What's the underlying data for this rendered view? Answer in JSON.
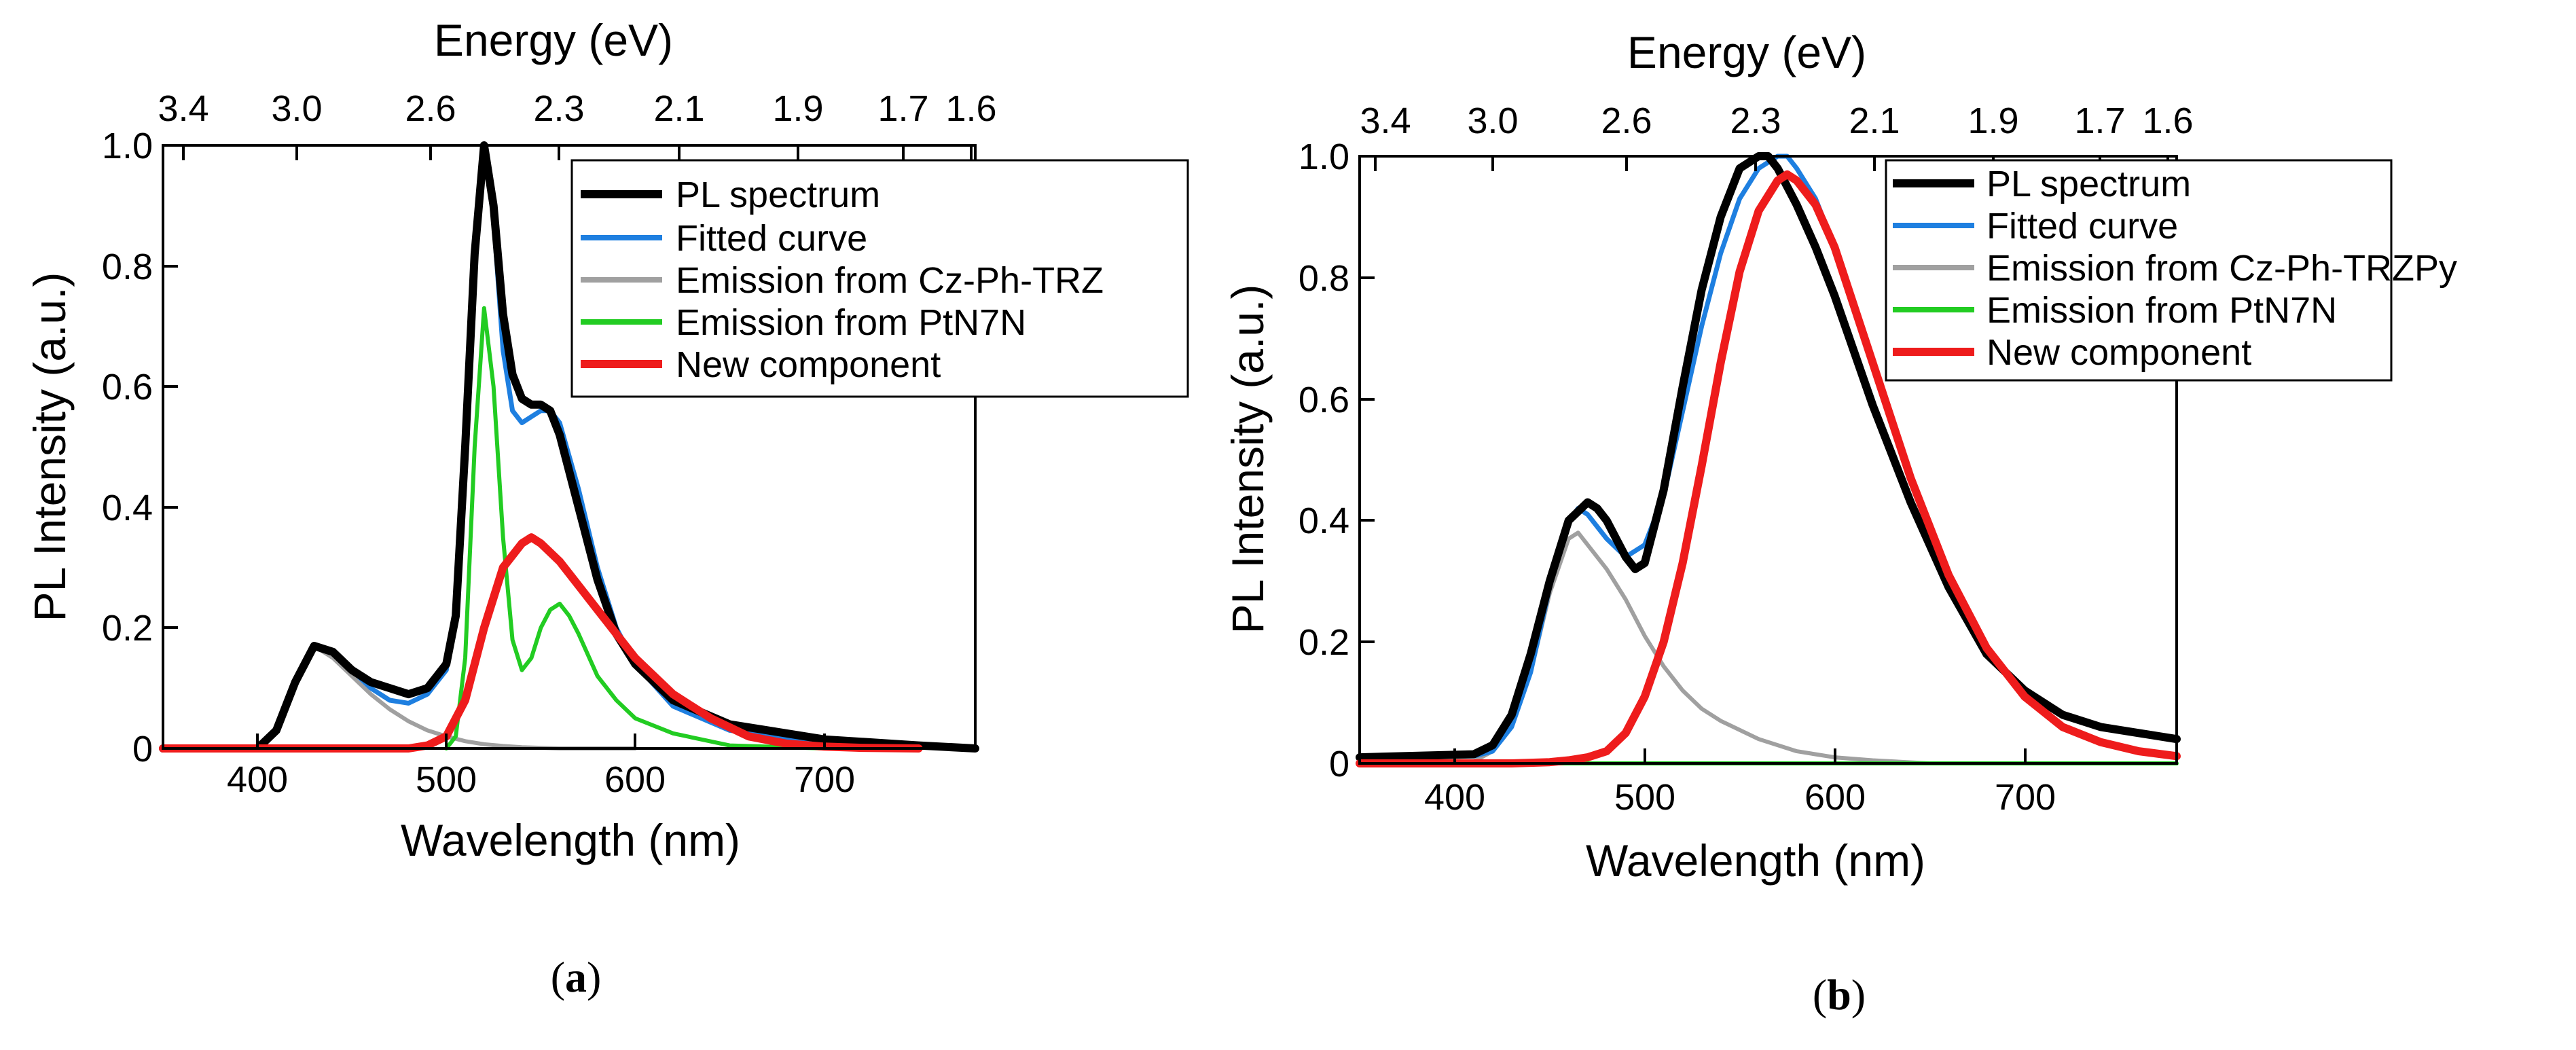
{
  "chart_data": [
    {
      "type": "line",
      "panel": "a",
      "caption": {
        "open": "(",
        "letter": "a",
        "close": ")"
      },
      "xlabel": "Wavelength (nm)",
      "ylabel": "PL Intensity (a.u.)",
      "top_xlabel": "Energy (eV)",
      "xlim": [
        350,
        780
      ],
      "ylim": [
        0,
        1.0
      ],
      "xticks": [
        400,
        500,
        600,
        700
      ],
      "yticks": [
        0,
        0.2,
        0.4,
        0.6,
        0.8,
        1.0
      ],
      "ytick_labels": [
        "0",
        "0.2",
        "0.4",
        "0.6",
        "0.8",
        "1.0"
      ],
      "top_ticks": [
        "3.4",
        "3.0",
        "2.6",
        "2.3",
        "2.1",
        "1.9",
        "1.7",
        "1.6"
      ],
      "legend_position": "top-right",
      "series": [
        {
          "name": "PL spectrum",
          "color": "#000000",
          "x": [
            350,
            400,
            410,
            420,
            430,
            440,
            450,
            460,
            470,
            480,
            490,
            500,
            505,
            510,
            515,
            520,
            525,
            530,
            535,
            540,
            545,
            550,
            555,
            560,
            570,
            580,
            590,
            600,
            620,
            650,
            700,
            750,
            780
          ],
          "y": [
            0,
            0,
            0.03,
            0.11,
            0.17,
            0.16,
            0.13,
            0.11,
            0.1,
            0.09,
            0.1,
            0.14,
            0.22,
            0.5,
            0.82,
            1.0,
            0.9,
            0.72,
            0.62,
            0.58,
            0.57,
            0.57,
            0.56,
            0.52,
            0.4,
            0.28,
            0.19,
            0.14,
            0.08,
            0.04,
            0.015,
            0.005,
            0
          ]
        },
        {
          "name": "Fitted curve",
          "color": "#1e7fe0",
          "x": [
            350,
            400,
            410,
            420,
            430,
            440,
            450,
            460,
            470,
            480,
            490,
            500,
            505,
            510,
            515,
            520,
            525,
            530,
            535,
            540,
            545,
            550,
            555,
            560,
            570,
            580,
            590,
            600,
            620,
            650,
            700,
            750,
            780
          ],
          "y": [
            0,
            0,
            0.03,
            0.11,
            0.17,
            0.16,
            0.13,
            0.1,
            0.08,
            0.075,
            0.09,
            0.13,
            0.22,
            0.5,
            0.82,
            1.0,
            0.88,
            0.66,
            0.56,
            0.54,
            0.55,
            0.56,
            0.56,
            0.54,
            0.43,
            0.3,
            0.2,
            0.14,
            0.07,
            0.03,
            0.01,
            0.003,
            0
          ]
        },
        {
          "name": "Emission from Cz-Ph-TRZ",
          "color": "#a0a0a0",
          "x": [
            350,
            400,
            410,
            420,
            430,
            440,
            450,
            460,
            470,
            480,
            490,
            500,
            510,
            520,
            530,
            540,
            560,
            600
          ],
          "y": [
            0,
            0,
            0.03,
            0.11,
            0.17,
            0.15,
            0.12,
            0.09,
            0.065,
            0.045,
            0.03,
            0.02,
            0.012,
            0.007,
            0.004,
            0.002,
            0,
            0
          ]
        },
        {
          "name": "Emission from PtN7N",
          "color": "#22cc22",
          "x": [
            500,
            505,
            510,
            515,
            520,
            525,
            530,
            535,
            540,
            545,
            550,
            555,
            560,
            565,
            570,
            580,
            590,
            600,
            620,
            650,
            700
          ],
          "y": [
            0,
            0.02,
            0.15,
            0.5,
            0.73,
            0.6,
            0.35,
            0.18,
            0.13,
            0.15,
            0.2,
            0.23,
            0.24,
            0.22,
            0.19,
            0.12,
            0.08,
            0.05,
            0.025,
            0.005,
            0
          ]
        },
        {
          "name": "New component",
          "color": "#ee1c1c",
          "x": [
            350,
            480,
            490,
            500,
            510,
            520,
            530,
            540,
            545,
            550,
            560,
            570,
            580,
            600,
            620,
            640,
            660,
            680,
            700,
            720,
            750
          ],
          "y": [
            0,
            0,
            0.005,
            0.02,
            0.08,
            0.2,
            0.3,
            0.34,
            0.35,
            0.34,
            0.31,
            0.27,
            0.23,
            0.15,
            0.09,
            0.05,
            0.02,
            0.008,
            0.003,
            0.001,
            0
          ]
        }
      ]
    },
    {
      "type": "line",
      "panel": "b",
      "caption": {
        "open": "(",
        "letter": "b",
        "close": ")"
      },
      "xlabel": "Wavelength (nm)",
      "ylabel": "PL Intensity (a.u.)",
      "top_xlabel": "Energy (eV)",
      "xlim": [
        350,
        780
      ],
      "ylim": [
        0,
        1.0
      ],
      "xticks": [
        400,
        500,
        600,
        700
      ],
      "yticks": [
        0,
        0.2,
        0.4,
        0.6,
        0.8,
        1.0
      ],
      "ytick_labels": [
        "0",
        "0.2",
        "0.4",
        "0.6",
        "0.8",
        "1.0"
      ],
      "top_ticks": [
        "3.4",
        "3.0",
        "2.6",
        "2.3",
        "2.1",
        "1.9",
        "1.7",
        "1.6"
      ],
      "legend_position": "top-right",
      "series": [
        {
          "name": "PL spectrum",
          "color": "#000000",
          "x": [
            350,
            410,
            420,
            430,
            440,
            450,
            460,
            470,
            475,
            480,
            490,
            495,
            500,
            510,
            520,
            530,
            540,
            550,
            560,
            565,
            570,
            580,
            590,
            600,
            620,
            640,
            660,
            680,
            700,
            720,
            740,
            760,
            780
          ],
          "y": [
            0.01,
            0.015,
            0.03,
            0.08,
            0.18,
            0.3,
            0.4,
            0.43,
            0.42,
            0.4,
            0.34,
            0.32,
            0.33,
            0.45,
            0.62,
            0.78,
            0.9,
            0.98,
            1.0,
            1.0,
            0.98,
            0.92,
            0.85,
            0.77,
            0.59,
            0.43,
            0.29,
            0.18,
            0.12,
            0.08,
            0.06,
            0.05,
            0.04
          ]
        },
        {
          "name": "Fitted curve",
          "color": "#1e7fe0",
          "x": [
            350,
            410,
            420,
            430,
            440,
            450,
            460,
            465,
            470,
            480,
            490,
            500,
            510,
            520,
            530,
            540,
            550,
            560,
            570,
            575,
            580,
            590,
            600,
            620,
            640,
            660,
            680,
            700,
            720,
            740,
            760,
            780
          ],
          "y": [
            0.01,
            0.012,
            0.02,
            0.06,
            0.15,
            0.29,
            0.4,
            0.42,
            0.41,
            0.37,
            0.34,
            0.36,
            0.44,
            0.58,
            0.72,
            0.84,
            0.93,
            0.98,
            1.0,
            1.0,
            0.98,
            0.93,
            0.85,
            0.66,
            0.47,
            0.31,
            0.19,
            0.11,
            0.06,
            0.035,
            0.02,
            0.012
          ]
        },
        {
          "name": "Emission from Cz-Ph-TRZPy",
          "color": "#a0a0a0",
          "x": [
            350,
            410,
            420,
            430,
            440,
            450,
            460,
            465,
            470,
            480,
            490,
            500,
            510,
            520,
            530,
            540,
            560,
            580,
            600,
            620,
            650,
            700,
            780
          ],
          "y": [
            0,
            0.003,
            0.02,
            0.06,
            0.15,
            0.28,
            0.37,
            0.38,
            0.36,
            0.32,
            0.27,
            0.21,
            0.16,
            0.12,
            0.09,
            0.07,
            0.04,
            0.02,
            0.01,
            0.005,
            0,
            0,
            0
          ]
        },
        {
          "name": "Emission from PtN7N",
          "color": "#22cc22",
          "x": [
            350,
            780
          ],
          "y": [
            0,
            0
          ]
        },
        {
          "name": "New component",
          "color": "#ee1c1c",
          "x": [
            350,
            430,
            450,
            460,
            470,
            480,
            490,
            500,
            510,
            520,
            530,
            540,
            550,
            560,
            570,
            575,
            580,
            590,
            600,
            620,
            640,
            660,
            680,
            700,
            720,
            740,
            760,
            780
          ],
          "y": [
            0,
            0,
            0.002,
            0.005,
            0.01,
            0.02,
            0.05,
            0.11,
            0.2,
            0.33,
            0.49,
            0.66,
            0.81,
            0.91,
            0.96,
            0.97,
            0.96,
            0.92,
            0.85,
            0.66,
            0.47,
            0.31,
            0.19,
            0.11,
            0.06,
            0.035,
            0.02,
            0.012
          ]
        }
      ]
    }
  ]
}
